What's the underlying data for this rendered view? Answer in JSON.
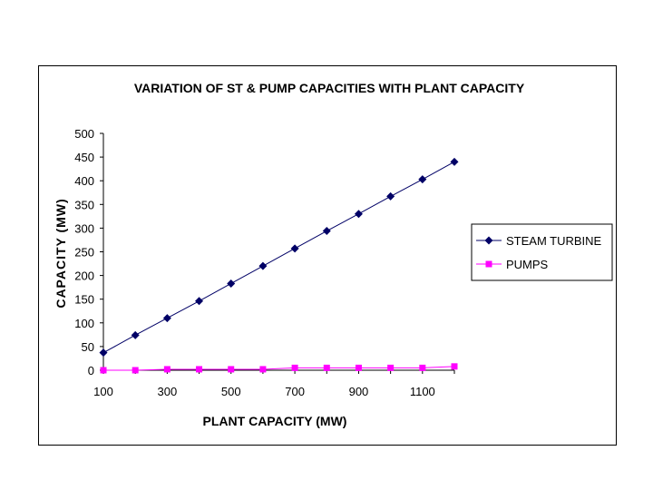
{
  "chart_data": {
    "type": "line",
    "title": "VARIATION OF ST & PUMP CAPACITIES WITH PLANT CAPACITY",
    "xlabel": "PLANT CAPACITY (MW)",
    "ylabel": "CAPACITY (MW)",
    "x": [
      100,
      200,
      300,
      400,
      500,
      600,
      700,
      800,
      900,
      1000,
      1100,
      1200
    ],
    "x_ticks": [
      100,
      300,
      500,
      700,
      900,
      1100
    ],
    "y_ticks": [
      0,
      50,
      100,
      150,
      200,
      250,
      300,
      350,
      400,
      450,
      500
    ],
    "xlim": [
      100,
      1200
    ],
    "ylim": [
      0,
      500
    ],
    "grid": false,
    "legend_position": "right",
    "series": [
      {
        "name": "STEAM TURBINE",
        "color": "#000066",
        "marker": "diamond",
        "values": [
          37,
          74,
          110,
          146,
          183,
          220,
          257,
          294,
          330,
          367,
          403,
          440
        ]
      },
      {
        "name": "PUMPS",
        "color": "#ff00ff",
        "marker": "square",
        "values": [
          0,
          0,
          2,
          2,
          2,
          2,
          5,
          5,
          5,
          5,
          5,
          8
        ]
      }
    ]
  }
}
